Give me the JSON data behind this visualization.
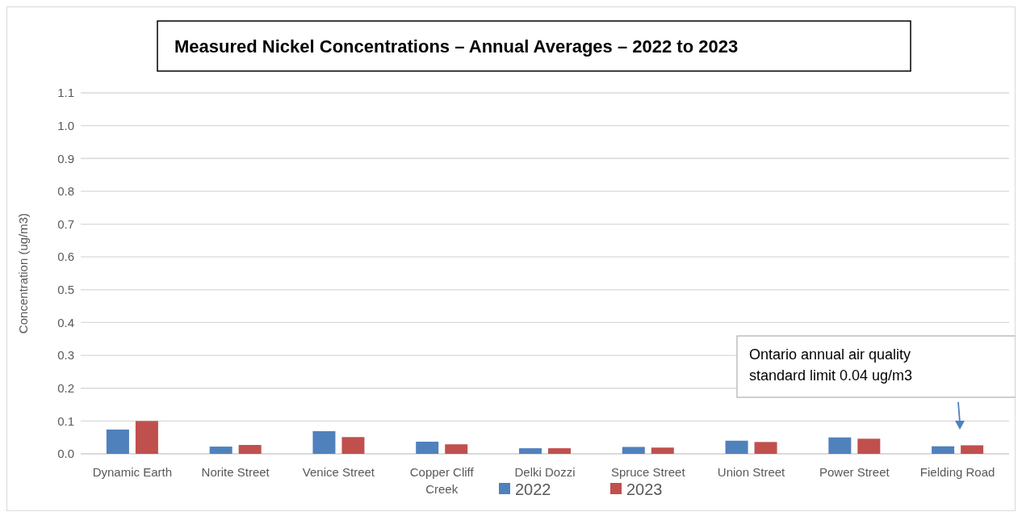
{
  "chart_data": {
    "type": "bar",
    "title": "Measured Nickel Concentrations – Annual Averages – 2022 to 2023",
    "ylabel": "Concentration (ug/m3)",
    "categories": [
      "Dynamic Earth",
      "Norite Street",
      "Venice Street",
      "Copper Cliff Creek",
      "Delki Dozzi",
      "Spruce Street",
      "Union Street",
      "Power Street",
      "Fielding Road"
    ],
    "series": [
      {
        "name": "2022",
        "color": "#4f81bd",
        "values": [
          0.074,
          0.022,
          0.069,
          0.037,
          0.017,
          0.021,
          0.04,
          0.05,
          0.023
        ]
      },
      {
        "name": "2023",
        "color": "#c0504d",
        "values": [
          0.1,
          0.027,
          0.051,
          0.029,
          0.017,
          0.019,
          0.036,
          0.046,
          0.026
        ]
      }
    ],
    "ylim": [
      0,
      1.1
    ],
    "yticks": [
      {
        "value": 0,
        "label": "0.0"
      },
      {
        "value": 0.1,
        "label": "0.1"
      },
      {
        "value": 0.2,
        "label": "0.2"
      },
      {
        "value": 0.3,
        "label": "0.3"
      },
      {
        "value": 0.4,
        "label": "0.4"
      },
      {
        "value": 0.5,
        "label": "0.5"
      },
      {
        "value": 0.6,
        "label": "0.6"
      },
      {
        "value": 0.7,
        "label": "0.7"
      },
      {
        "value": 0.8,
        "label": "0.8"
      },
      {
        "value": 0.9,
        "label": "0.9"
      },
      {
        "value": 1,
        "label": "1.0"
      },
      {
        "value": 1.1,
        "label": "1.1"
      }
    ],
    "grid": "y",
    "legend": "bottom",
    "annotations": [
      "Ontario annual air quality standard limit 0.04 ug/m3"
    ]
  }
}
